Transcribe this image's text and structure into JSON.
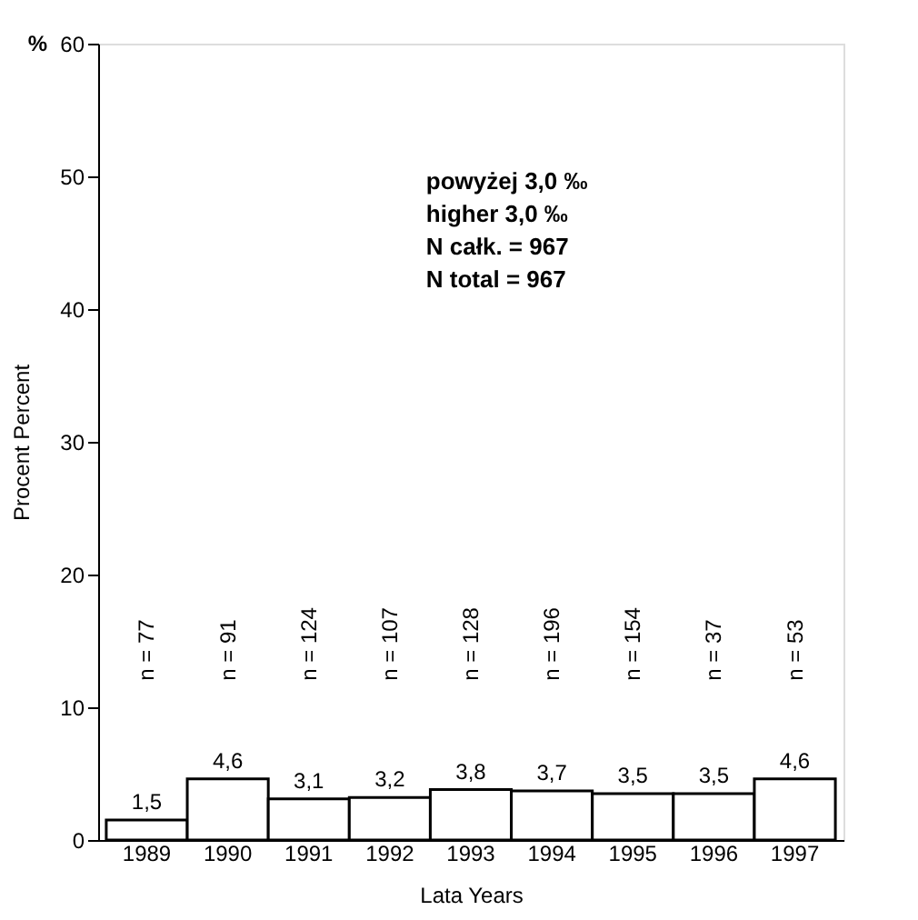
{
  "chart_data": {
    "type": "bar",
    "categories": [
      "1989",
      "1990",
      "1991",
      "1992",
      "1993",
      "1994",
      "1995",
      "1996",
      "1997"
    ],
    "values": [
      1.5,
      4.6,
      3.1,
      3.2,
      3.8,
      3.7,
      3.5,
      3.5,
      4.6
    ],
    "value_labels": [
      "1,5",
      "4,6",
      "3,1",
      "3,2",
      "3,8",
      "3,7",
      "3,5",
      "3,5",
      "4,6"
    ],
    "color": "#ffffff",
    "xlabel": "Lata   Years",
    "ylabel": "Procent   Percent",
    "ylim": [
      0,
      60
    ],
    "yticks": [
      0,
      10,
      20,
      30,
      40,
      50,
      60
    ],
    "grid": false,
    "annotations": [
      "%",
      "powyżej 3,0 ‰",
      "higher 3,0 ‰",
      "N całk. = 967",
      "N total = 967",
      "n = 77",
      "n = 91",
      "n = 124",
      "n = 107",
      "n = 128",
      "n = 196",
      "n = 154",
      "n = 37",
      "n = 53"
    ]
  }
}
